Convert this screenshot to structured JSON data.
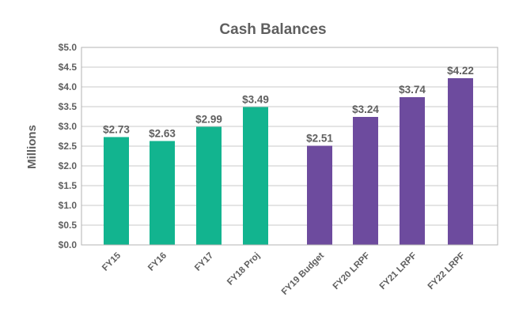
{
  "chart_data": {
    "type": "bar",
    "title": "Cash Balances",
    "ylabel": "Millions",
    "xlabel": "",
    "ylim": [
      0,
      5
    ],
    "yticks": [
      "$0.0",
      "$0.5",
      "$1.0",
      "$1.5",
      "$2.0",
      "$2.5",
      "$3.0",
      "$3.5",
      "$4.0",
      "$4.5",
      "$5.0"
    ],
    "grid": true,
    "categories": [
      "FY15",
      "FY16",
      "FY17",
      "FY18 Proj",
      "FY19 Budget",
      "FY20 LRPF",
      "FY21 LRPF",
      "FY22 LRPF"
    ],
    "values": [
      2.73,
      2.63,
      2.99,
      3.49,
      2.51,
      3.24,
      3.74,
      4.22
    ],
    "data_labels": [
      "$2.73",
      "$2.63",
      "$2.99",
      "$3.49",
      "$2.51",
      "$3.24",
      "$3.74",
      "$4.22"
    ],
    "bar_colors": [
      "#12b48f",
      "#12b48f",
      "#12b48f",
      "#12b48f",
      "#6d4b9e",
      "#6d4b9e",
      "#6d4b9e",
      "#6d4b9e"
    ]
  }
}
